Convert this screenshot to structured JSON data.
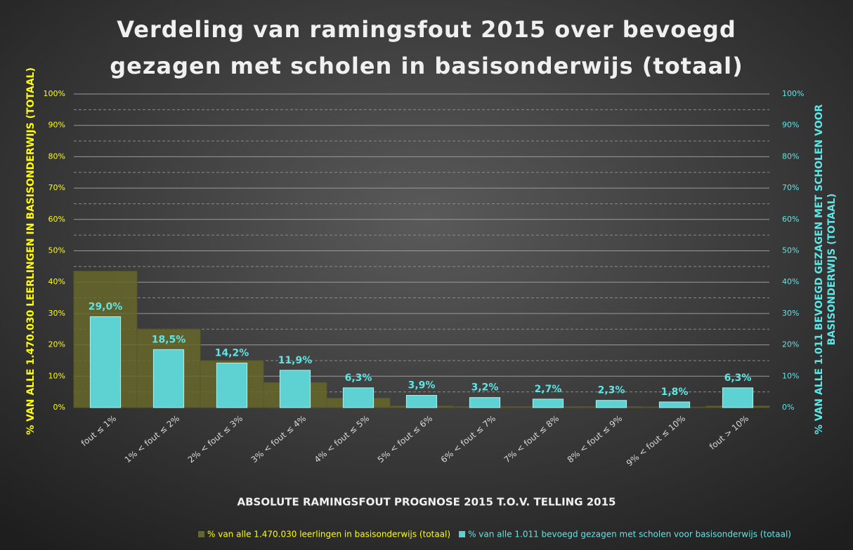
{
  "chart_data": {
    "type": "bar",
    "title": [
      "Verdeling van ramingsfout 2015 over bevoegd",
      "gezagen met scholen in basisonderwijs (totaal)"
    ],
    "x_label": "ABSOLUTE RAMINGSFOUT PROGNOSE 2015 T.O.V. TELLING 2015",
    "y_label": "% VAN ALLE 1.470.030 LEERLINGEN IN BASISONDERWIJS (TOTAAL)",
    "y2_label": [
      "% VAN ALLE 1.011 BEVOEGD GEZAGEN MET SCHOLEN VOOR",
      "BASISONDERWIJS (TOTAAL)"
    ],
    "categories": [
      "fout ≤ 1%",
      "1% < fout ≤ 2%",
      "2% < fout ≤ 3%",
      "3% < fout ≤ 4%",
      "4% < fout ≤ 5%",
      "5% < fout ≤ 6%",
      "6% < fout ≤ 7%",
      "7% < fout ≤ 8%",
      "8% < fout ≤ 9%",
      "9% < fout ≤ 10%",
      "fout > 10%"
    ],
    "series": [
      {
        "name": "% van alle 1.470.030 leerlingen in basisonderwijs (totaal)",
        "color": "#67672c",
        "values": [
          43.5,
          25,
          15,
          8,
          3,
          0.5,
          0.3,
          0.3,
          0.3,
          0.2,
          0.5
        ]
      },
      {
        "name": "% van alle 1.011 bevoegd gezagen met scholen voor basisonderwijs (totaal)",
        "color": "#5ed2d2",
        "axis": "y2",
        "values": [
          29.0,
          18.5,
          14.2,
          11.9,
          6.3,
          3.9,
          3.2,
          2.7,
          2.3,
          1.8,
          6.3
        ],
        "value_labels": [
          "29,0%",
          "18,5%",
          "14,2%",
          "11,9%",
          "6,3%",
          "3,9%",
          "3,2%",
          "2,7%",
          "2,3%",
          "1,8%",
          "6,3%"
        ]
      }
    ],
    "ylim": [
      0,
      100
    ],
    "yticks": [
      {
        "value": 0,
        "label": "0%"
      },
      {
        "value": 10,
        "label": "10%"
      },
      {
        "value": 20,
        "label": "20%"
      },
      {
        "value": 30,
        "label": "30%"
      },
      {
        "value": 40,
        "label": "40%"
      },
      {
        "value": 50,
        "label": "50%"
      },
      {
        "value": 60,
        "label": "60%"
      },
      {
        "value": 70,
        "label": "70%"
      },
      {
        "value": 80,
        "label": "80%"
      },
      {
        "value": 90,
        "label": "90%"
      },
      {
        "value": 100,
        "label": "100%"
      }
    ],
    "y2lim": [
      0,
      100
    ],
    "y2ticks": [
      {
        "value": 0,
        "label": "0%"
      },
      {
        "value": 10,
        "label": "10%"
      },
      {
        "value": 20,
        "label": "20%"
      },
      {
        "value": 30,
        "label": "30%"
      },
      {
        "value": 40,
        "label": "40%"
      },
      {
        "value": 50,
        "label": "50%"
      },
      {
        "value": 60,
        "label": "60%"
      },
      {
        "value": 70,
        "label": "70%"
      },
      {
        "value": 80,
        "label": "80%"
      },
      {
        "value": 90,
        "label": "90%"
      },
      {
        "value": 100,
        "label": "100%"
      }
    ],
    "grid": true
  }
}
